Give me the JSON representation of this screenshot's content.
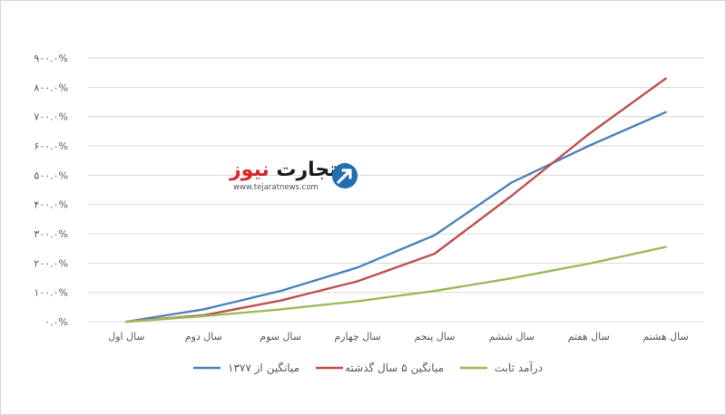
{
  "chart_data": {
    "type": "line",
    "categories": [
      "سال اول",
      "سال دوم",
      "سال سوم",
      "سال چهارم",
      "سال پنجم",
      "سال ششم",
      "سال هفتم",
      "سال هشتم"
    ],
    "y_tick_labels": [
      "۰.۰%",
      "۱۰۰.۰%",
      "۲۰۰.۰%",
      "۳۰۰.۰%",
      "۴۰۰.۰%",
      "۵۰۰.۰%",
      "۶۰۰.۰%",
      "۷۰۰.۰%",
      "۸۰۰.۰%",
      "۹۰۰.۰%"
    ],
    "ylim": [
      0,
      900
    ],
    "y_unit": "%",
    "grid": true,
    "legend_position": "bottom",
    "series": [
      {
        "name": "میانگین از ۱۳۷۷",
        "color": "#4f81bd",
        "values": [
          0,
          42,
          105,
          185,
          295,
          475,
          600,
          715
        ]
      },
      {
        "name": "میانگین ۵ سال گذشته",
        "color": "#c0504d",
        "values": [
          0,
          22,
          72,
          138,
          232,
          430,
          640,
          830
        ]
      },
      {
        "name": "درآمد ثابت",
        "color": "#9bbb59",
        "values": [
          0,
          19,
          42,
          70,
          105,
          148,
          198,
          255
        ]
      }
    ]
  },
  "watermark": {
    "word_main": "تجارت",
    "word_accent": "نیوز",
    "site": "www.tejaratnews.com",
    "main_color": "#1a1a1a",
    "accent_color": "#d62828",
    "mark_color": "#1f6fb2",
    "icon": "arrow-up-right-icon"
  }
}
